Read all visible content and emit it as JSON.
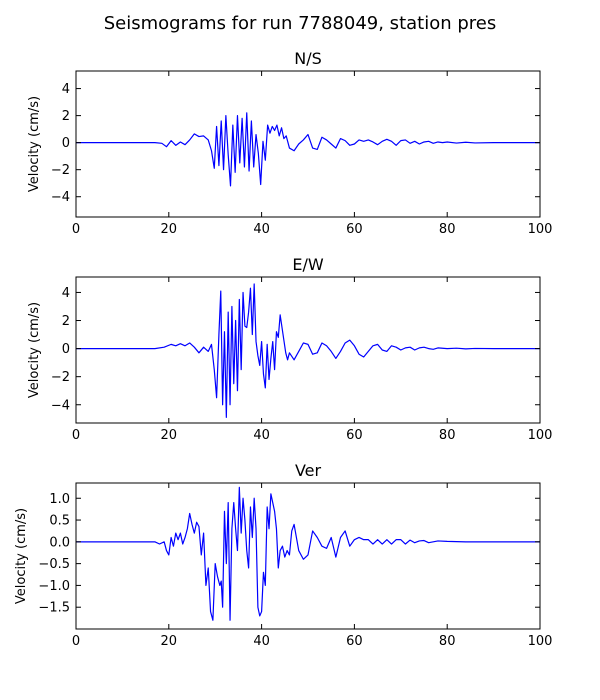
{
  "figure": {
    "title": "Seismograms for run 7788049, station pres"
  },
  "chart_data": [
    {
      "type": "line",
      "title": "N/S",
      "ylabel": "Velocity (cm/s)",
      "xlim": [
        0,
        100
      ],
      "ylim": [
        -5.5,
        5.3
      ],
      "xticks": [
        0,
        20,
        40,
        60,
        80,
        100
      ],
      "yticks": [
        -4,
        -2,
        0,
        2,
        4
      ],
      "yticklabels": [
        "−4",
        "−2",
        "0",
        "2",
        "4"
      ],
      "color": "#0000ff",
      "series": [
        {
          "x": [
            0,
            17,
            18.5,
            19.5,
            20.5,
            21.5,
            22.5,
            23.5,
            24.5,
            25.5,
            26.5,
            27.5,
            28.5,
            29.2,
            29.8,
            30.3,
            30.8,
            31.3,
            31.8,
            32.3,
            32.8,
            33.3,
            33.8,
            34.3,
            34.8,
            35.3,
            35.8,
            36.3,
            36.8,
            37.3,
            37.8,
            38.3,
            38.8,
            39.3,
            39.8,
            40.3,
            40.8,
            41.3,
            41.8,
            42.3,
            42.8,
            43.3,
            43.8,
            44.3,
            44.8,
            45.3,
            46,
            47,
            48,
            49,
            50,
            51,
            52,
            53,
            54,
            55,
            56,
            57,
            58,
            59,
            60,
            61,
            62,
            63,
            64,
            65,
            66,
            67,
            68,
            69,
            70,
            71,
            72,
            73,
            74,
            75,
            76,
            77,
            78,
            79,
            80,
            82,
            84,
            86,
            90,
            100
          ],
          "y": [
            0,
            0,
            -0.05,
            -0.3,
            0.15,
            -0.2,
            0.05,
            -0.15,
            0.2,
            0.65,
            0.45,
            0.5,
            0.2,
            -0.6,
            -1.9,
            1.2,
            -1.7,
            1.6,
            -2,
            2,
            -0.9,
            -3.2,
            1.3,
            -2.2,
            2,
            -1.5,
            1.8,
            -1.8,
            2.2,
            -2.1,
            1.6,
            -1.8,
            0.6,
            -0.8,
            -3.1,
            0.1,
            -1.3,
            1.3,
            0.7,
            1.2,
            0.9,
            1.3,
            0.5,
            1.1,
            0.3,
            0.5,
            -0.4,
            -0.6,
            -0.1,
            0.2,
            0.6,
            -0.4,
            -0.5,
            0.4,
            0.2,
            -0.1,
            -0.4,
            0.3,
            0.15,
            -0.2,
            -0.1,
            0.2,
            0.1,
            0.2,
            0.05,
            -0.15,
            0.1,
            0.25,
            0.1,
            -0.2,
            0.15,
            0.2,
            -0.05,
            0.1,
            -0.1,
            0.05,
            0.1,
            -0.05,
            0.05,
            0,
            0.05,
            -0.03,
            0.03,
            -0.02,
            0,
            0
          ]
        }
      ]
    },
    {
      "type": "line",
      "title": "E/W",
      "ylabel": "Velocity (cm/s)",
      "xlim": [
        0,
        100
      ],
      "ylim": [
        -5.3,
        5.1
      ],
      "xticks": [
        0,
        20,
        40,
        60,
        80,
        100
      ],
      "yticks": [
        -4,
        -2,
        0,
        2,
        4
      ],
      "yticklabels": [
        "−4",
        "−2",
        "0",
        "2",
        "4"
      ],
      "color": "#0000ff",
      "series": [
        {
          "x": [
            0,
            17,
            19,
            20.5,
            21.5,
            22.5,
            23.5,
            24.5,
            25.5,
            26.5,
            27.5,
            28.5,
            29.2,
            29.8,
            30.3,
            30.8,
            31.2,
            31.6,
            32,
            32.4,
            32.8,
            33.2,
            33.6,
            34,
            34.4,
            34.8,
            35.2,
            35.6,
            36,
            36.4,
            36.8,
            37.2,
            37.6,
            38,
            38.4,
            38.8,
            39.2,
            39.6,
            40,
            40.4,
            40.8,
            41.2,
            41.6,
            42,
            42.4,
            42.8,
            43.2,
            43.6,
            44,
            44.4,
            44.8,
            45.2,
            45.6,
            46,
            47,
            48,
            49,
            50,
            51,
            52,
            53,
            54,
            55,
            56,
            57,
            58,
            59,
            60,
            61,
            62,
            63,
            64,
            65,
            66,
            67,
            68,
            69,
            70,
            71,
            72,
            73,
            74,
            75,
            76,
            77,
            78,
            80,
            82,
            84,
            86,
            90,
            100
          ],
          "y": [
            0,
            0,
            0.1,
            0.3,
            0.2,
            0.35,
            0.2,
            0.4,
            0.1,
            -0.3,
            0.1,
            -0.2,
            0.3,
            -1.5,
            -3.5,
            1,
            4.1,
            -4,
            1.2,
            -4.9,
            2.6,
            -4,
            3,
            -2.5,
            2,
            -3,
            3.5,
            -1.5,
            4,
            1.6,
            1.5,
            2.6,
            4.3,
            1,
            4.6,
            0.5,
            -0.5,
            -1.2,
            0.5,
            -1.8,
            -2.8,
            0.3,
            -2.2,
            -0.7,
            0.5,
            -1.5,
            1.2,
            0.8,
            2.4,
            1.5,
            0.6,
            -0.3,
            -0.8,
            -0.3,
            -0.8,
            -0.2,
            0.4,
            0.3,
            -0.4,
            -0.3,
            0.4,
            0.2,
            -0.2,
            -0.7,
            -0.2,
            0.4,
            0.6,
            0.2,
            -0.4,
            -0.6,
            -0.2,
            0.2,
            0.3,
            -0.1,
            -0.2,
            0.2,
            0.1,
            -0.1,
            0.05,
            0.1,
            -0.1,
            0.05,
            0.1,
            0,
            -0.05,
            0.05,
            0,
            0.03,
            -0.02,
            0.01,
            0,
            0
          ]
        }
      ]
    },
    {
      "type": "line",
      "title": "Ver",
      "ylabel": "Velocity (cm/s)",
      "xlim": [
        0,
        100
      ],
      "ylim": [
        -2.0,
        1.35
      ],
      "xticks": [
        0,
        20,
        40,
        60,
        80,
        100
      ],
      "yticks": [
        -1.5,
        -1.0,
        -0.5,
        0.0,
        0.5,
        1.0
      ],
      "yticklabels": [
        "−1.5",
        "−1.0",
        "−0.5",
        "0.0",
        "0.5",
        "1.0"
      ],
      "color": "#0000ff",
      "series": [
        {
          "x": [
            0,
            17,
            18,
            19,
            19.5,
            20,
            20.5,
            21,
            21.5,
            22,
            22.5,
            23,
            23.5,
            24,
            24.5,
            25,
            25.5,
            26,
            26.5,
            27,
            27.5,
            28,
            28.5,
            29,
            29.5,
            30,
            30.5,
            31,
            31.3,
            31.6,
            32,
            32.4,
            32.8,
            33.2,
            33.6,
            34,
            34.4,
            34.8,
            35.2,
            35.6,
            36,
            36.4,
            36.8,
            37.2,
            37.6,
            38,
            38.4,
            38.8,
            39.2,
            39.6,
            40,
            40.4,
            40.8,
            41.2,
            41.6,
            42,
            42.4,
            42.8,
            43.2,
            43.6,
            44,
            44.5,
            45,
            45.5,
            46,
            46.5,
            47,
            48,
            49,
            50,
            51,
            52,
            53,
            54,
            55,
            56,
            57,
            58,
            59,
            60,
            61,
            62,
            63,
            64,
            65,
            66,
            67,
            68,
            69,
            70,
            71,
            72,
            73,
            74,
            75,
            76,
            78,
            80,
            84,
            90,
            100
          ],
          "y": [
            0,
            0,
            -0.05,
            0,
            -0.2,
            -0.3,
            0.1,
            -0.1,
            0.2,
            0.05,
            0.2,
            -0.05,
            0.1,
            0.3,
            0.65,
            0.4,
            0.2,
            0.45,
            0.35,
            -0.3,
            0.2,
            -1,
            -0.6,
            -1.6,
            -1.8,
            -0.5,
            -0.8,
            -1,
            -0.9,
            -1.5,
            0.7,
            -0.5,
            0.9,
            -1.8,
            0.3,
            0.9,
            0.3,
            -0.2,
            1.25,
            0.2,
            1,
            0.5,
            -0.2,
            -0.6,
            0.8,
            0.1,
            1.0,
            0.3,
            -1.5,
            -1.7,
            -1.6,
            -0.7,
            -1.0,
            0.8,
            0.3,
            1.1,
            0.9,
            0.7,
            0.3,
            -0.6,
            -0.2,
            -0.1,
            -0.35,
            -0.2,
            -0.3,
            0.25,
            0.4,
            -0.2,
            -0.4,
            -0.3,
            0.25,
            0.1,
            -0.1,
            -0.15,
            0.1,
            -0.35,
            0.1,
            0.25,
            -0.1,
            0.05,
            0.1,
            0.05,
            0.05,
            -0.05,
            0.05,
            -0.05,
            0.05,
            -0.05,
            0.05,
            0.05,
            -0.05,
            0.04,
            -0.02,
            0.02,
            0.03,
            -0.02,
            0.02,
            0.01,
            0,
            0,
            0
          ]
        }
      ]
    }
  ]
}
